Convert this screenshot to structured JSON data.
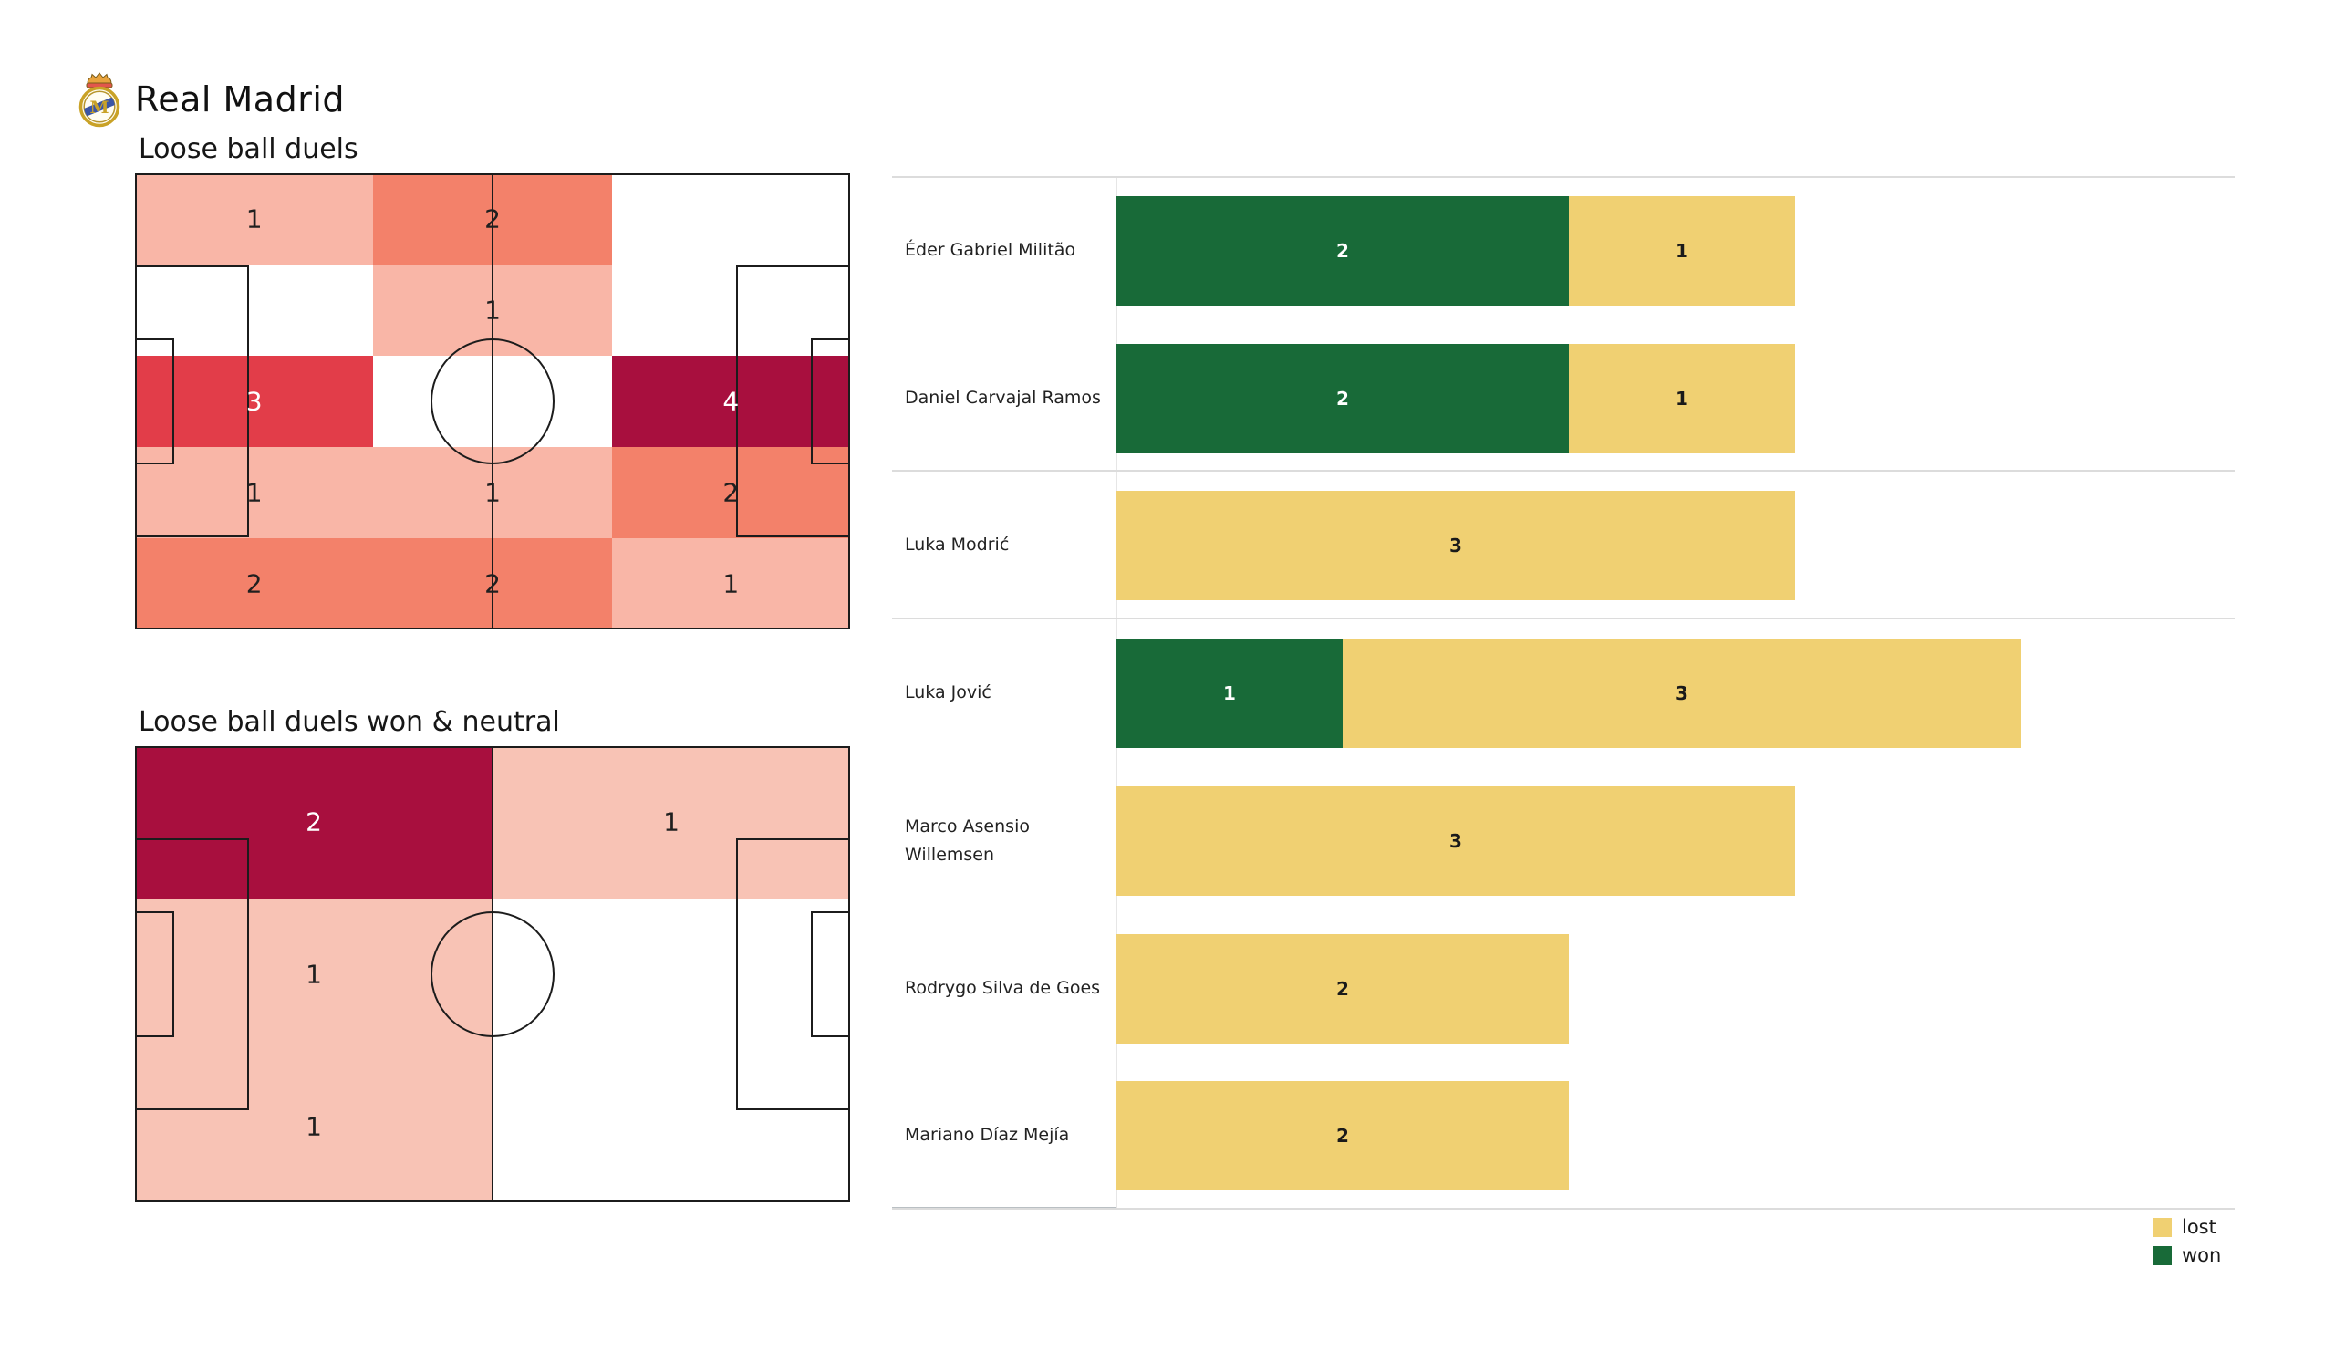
{
  "header": {
    "team": "Real Madrid"
  },
  "palette": {
    "h1": "#f9b6a7",
    "h1l": "#f8c3b5",
    "h2": "#f3816a",
    "h3": "#e23d49",
    "h4": "#a80f3e",
    "heat_text_dark": "#1f1f1f",
    "heat_text_light": "#ffffff",
    "won": "#186a38",
    "lost": "#f0d072",
    "won_text": "#ffffff",
    "lost_text": "#1a1a1a",
    "separator": "#dcdcdc"
  },
  "chart_data": [
    {
      "type": "bar",
      "orientation": "horizontal",
      "stacked": true,
      "title": "",
      "categories": [
        "Éder Gabriel Militão",
        "Daniel Carvajal Ramos",
        "Luka Modrić",
        "Luka Jović",
        "Marco Asensio Willemsen",
        "Rodrygo Silva de Goes",
        "Mariano Díaz Mejía"
      ],
      "series": [
        {
          "name": "won",
          "color": "#186a38",
          "values": [
            2,
            2,
            0,
            1,
            0,
            0,
            0
          ]
        },
        {
          "name": "lost",
          "color": "#f0d072",
          "values": [
            1,
            1,
            3,
            3,
            3,
            2,
            2
          ]
        }
      ],
      "x_max": 4,
      "value_labels_inside_segments": true,
      "grid": "off",
      "legend_position": "bottom-right",
      "legend_labels": [
        "lost",
        "won"
      ],
      "group_separators_after": [
        1,
        2
      ]
    },
    {
      "type": "heatmap",
      "title": "Loose ball duels",
      "cols": 3,
      "rows": 5,
      "grid": [
        [
          1,
          2,
          null
        ],
        [
          null,
          1,
          null
        ],
        [
          3,
          null,
          4
        ],
        [
          1,
          1,
          2
        ],
        [
          2,
          2,
          1
        ]
      ],
      "cells": [
        {
          "row": 0,
          "col": 0,
          "value": 1,
          "level": "h1"
        },
        {
          "row": 0,
          "col": 1,
          "value": 2,
          "level": "h2"
        },
        {
          "row": 1,
          "col": 1,
          "value": 1,
          "level": "h1"
        },
        {
          "row": 2,
          "col": 0,
          "value": 3,
          "level": "h3"
        },
        {
          "row": 2,
          "col": 2,
          "value": 4,
          "level": "h4"
        },
        {
          "row": 3,
          "col": 0,
          "value": 1,
          "level": "h1"
        },
        {
          "row": 3,
          "col": 1,
          "value": 1,
          "level": "h1"
        },
        {
          "row": 3,
          "col": 2,
          "value": 2,
          "level": "h2"
        },
        {
          "row": 4,
          "col": 0,
          "value": 2,
          "level": "h2"
        },
        {
          "row": 4,
          "col": 1,
          "value": 2,
          "level": "h2"
        },
        {
          "row": 4,
          "col": 2,
          "value": 1,
          "level": "h1"
        }
      ]
    },
    {
      "type": "heatmap",
      "title": "Loose ball duels won & neutral",
      "cols": 2,
      "rows": 3,
      "grid": [
        [
          2,
          1
        ],
        [
          1,
          null
        ],
        [
          1,
          null
        ]
      ],
      "cells": [
        {
          "row": 0,
          "col": 0,
          "value": 2,
          "level": "h4"
        },
        {
          "row": 0,
          "col": 1,
          "value": 1,
          "level": "h1l"
        },
        {
          "row": 1,
          "col": 0,
          "value": 1,
          "level": "h1l"
        },
        {
          "row": 2,
          "col": 0,
          "value": 1,
          "level": "h1l"
        }
      ]
    }
  ]
}
